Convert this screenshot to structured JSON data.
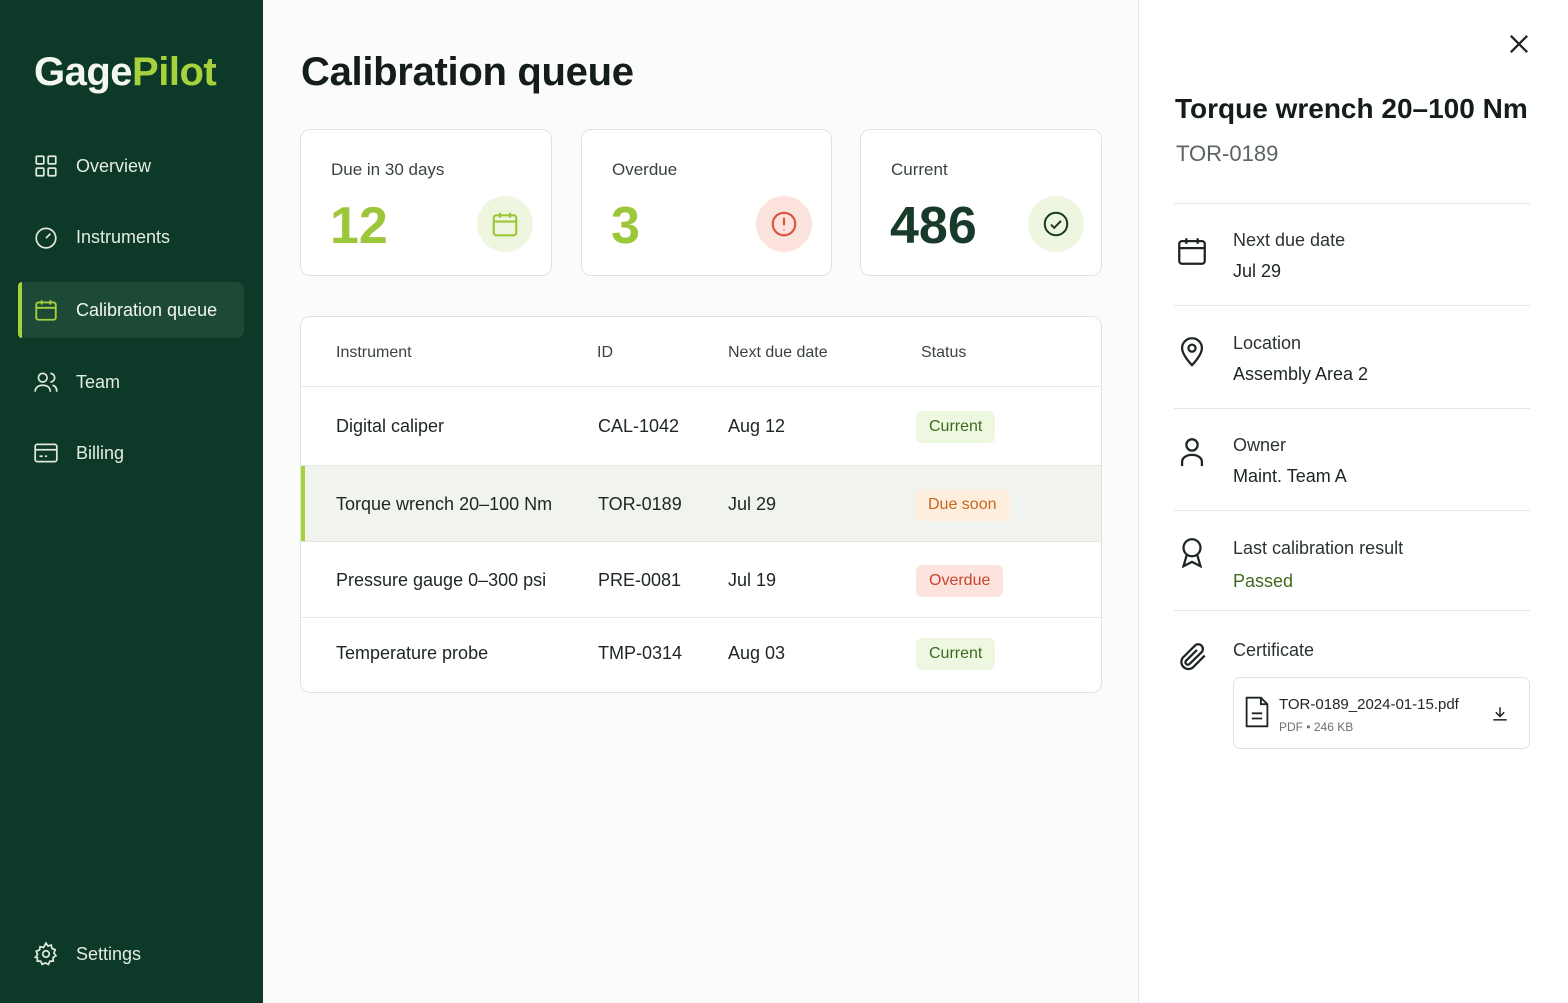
{
  "brand": {
    "part1": "Gage",
    "part2": "Pilot",
    "accent": "#a6d13c",
    "sidebar_bg": "#0d3a28"
  },
  "nav": {
    "items": [
      {
        "label": "Overview",
        "icon": "grid-icon"
      },
      {
        "label": "Instruments",
        "icon": "gauge-icon"
      },
      {
        "label": "Calibration queue",
        "icon": "calendar-icon",
        "active": true
      },
      {
        "label": "Team",
        "icon": "users-icon"
      },
      {
        "label": "Billing",
        "icon": "card-icon"
      }
    ],
    "settings": "Settings"
  },
  "main": {
    "title": "Calibration queue",
    "stats": [
      {
        "label": "Due in 30 days",
        "value": "12",
        "icon": "calendar-icon",
        "color": "#9cc73a"
      },
      {
        "label": "Overdue",
        "value": "3",
        "icon": "alert-icon",
        "color": "#9cc73a"
      },
      {
        "label": "Current",
        "value": "486",
        "icon": "check-circle-icon",
        "color": "#173a2a"
      }
    ],
    "table": {
      "headers": [
        "Instrument",
        "ID",
        "Next due date",
        "Status"
      ],
      "rows": [
        {
          "instrument": "Digital caliper",
          "id": "CAL-1042",
          "due": "Aug 12",
          "status": "Current"
        },
        {
          "instrument": "Torque wrench 20–100 Nm",
          "id": "TOR-0189",
          "due": "Jul 29",
          "status": "Due soon",
          "selected": true
        },
        {
          "instrument": "Pressure gauge 0–300 psi",
          "id": "PRE-0081",
          "due": "Jul 19",
          "status": "Overdue"
        },
        {
          "instrument": "Temperature probe",
          "id": "TMP-0314",
          "due": "Aug 03",
          "status": "Current"
        }
      ]
    }
  },
  "detail": {
    "title": "Torque wrench 20–100 Nm",
    "id": "TOR-0189",
    "fields": [
      {
        "label": "Next due date",
        "value": "Jul 29",
        "icon": "calendar-icon"
      },
      {
        "label": "Location",
        "value": "Assembly Area 2",
        "icon": "map-pin-icon"
      },
      {
        "label": "Owner",
        "value": "Maint. Team A",
        "icon": "user-icon"
      },
      {
        "label": "Last calibration result",
        "value": "Passed",
        "icon": "award-icon"
      }
    ],
    "certificate": {
      "label": "Certificate",
      "icon": "paperclip-icon",
      "file_name": "TOR-0189_2024-01-15.pdf",
      "file_meta": "PDF • 246 KB"
    }
  }
}
